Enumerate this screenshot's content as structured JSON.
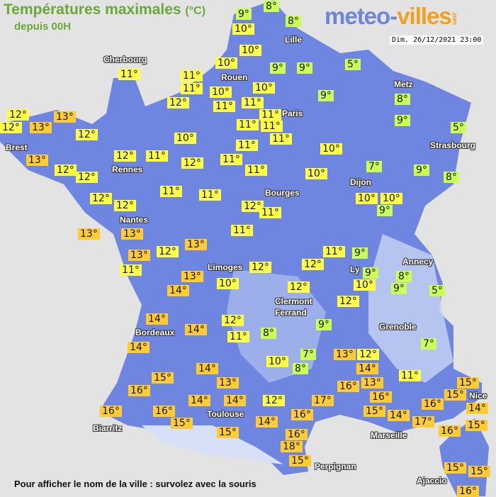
{
  "header": {
    "title": "Températures maximales",
    "unit": "(°C)",
    "subtitle": "depuis 00H",
    "logo_part1": "meteo-",
    "logo_part2": "villes",
    "logo_tld": ".com",
    "datetime": "Dim. 26/12/2021 23:00"
  },
  "footer": "Pour afficher le nom de la ville : survolez avec la souris",
  "colors": {
    "land": "#6f86e0",
    "mountain": "#c8d4f4",
    "sea": "#e3e3e3",
    "cold_label": "#ccff55",
    "mild_label": "#ffff44",
    "warm_label": "#ffcc33"
  },
  "cities": [
    "Cherbourg",
    "Lille",
    "Rouen",
    "Paris",
    "Metz",
    "Strasbourg",
    "Brest",
    "Rennes",
    "Nantes",
    "Dijon",
    "Bourges",
    "Limoges",
    "Ly",
    "Annecy",
    "Clermont\nFerrand",
    "Grenoble",
    "Bordeaux",
    "Toulouse",
    "Biarritz",
    "Marseille",
    "Nice",
    "Perpignan",
    "Ajaccio"
  ],
  "temperatures": [
    "9°",
    "8°",
    "10°",
    "8°",
    "10°",
    "5°",
    "9°",
    "9°",
    "10°",
    "11°",
    "11°",
    "11°",
    "10°",
    "10°",
    "9°",
    "12°",
    "11°",
    "11°",
    "11°",
    "8°",
    "9°",
    "5°",
    "13°",
    "12°",
    "13°",
    "12°",
    "12°",
    "11°",
    "11°",
    "11°",
    "10°",
    "11°",
    "12°",
    "11°",
    "12°",
    "11°",
    "10°",
    "7°",
    "9°",
    "8°",
    "13°",
    "12°",
    "12°",
    "11°",
    "10°",
    "11°",
    "11°",
    "12°",
    "12°",
    "12°",
    "11°",
    "10°",
    "10°",
    "9°",
    "13°",
    "13°",
    "11°",
    "13°",
    "12°",
    "13°",
    "11°",
    "9°",
    "12°",
    "12°",
    "11°",
    "9°",
    "8°",
    "9°",
    "10°",
    "13°",
    "14°",
    "10°",
    "12°",
    "5°",
    "12°",
    "14°",
    "12°",
    "9°",
    "14°",
    "11°",
    "8°",
    "7°",
    "14°",
    "7°",
    "13°",
    "12°",
    "10°",
    "8°",
    "14°",
    "11°",
    "15°",
    "14°",
    "13°",
    "13°",
    "16°",
    "15°",
    "15°",
    "16°",
    "12°",
    "17°",
    "16°",
    "16°",
    "14°",
    "14°",
    "14°",
    "15°",
    "14°",
    "16°",
    "16°",
    "15°",
    "14°",
    "16°",
    "17°",
    "16°",
    "15°",
    "15°",
    "16°",
    "18°",
    "15°",
    "15°",
    "15°",
    "16°"
  ]
}
